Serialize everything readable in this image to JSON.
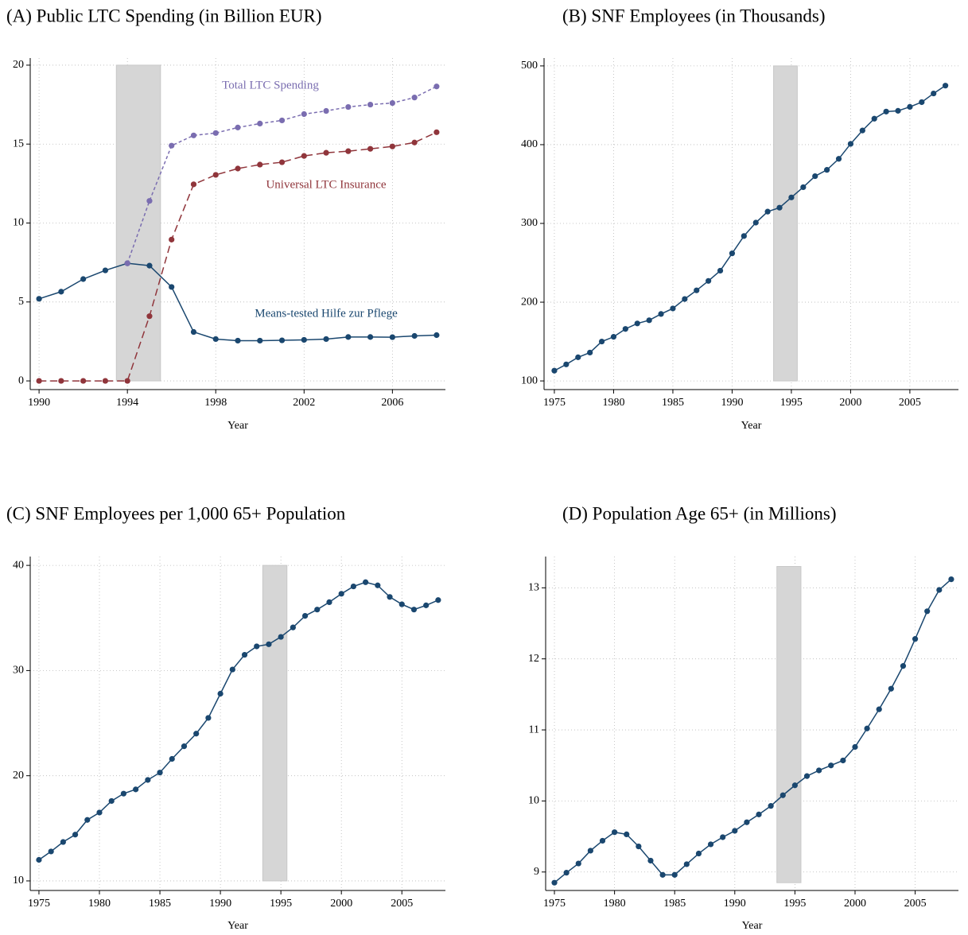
{
  "chart_data": [
    {
      "type": "line",
      "title": "(A) Public LTC Spending (in Billion EUR)",
      "x_label": "Year",
      "x": [
        1990,
        1991,
        1992,
        1993,
        1994,
        1995,
        1996,
        1997,
        1998,
        1999,
        2000,
        2001,
        2002,
        2003,
        2004,
        2005,
        2006,
        2007,
        2008
      ],
      "xlim": [
        1989.6,
        2008.4
      ],
      "xticks": [
        1990,
        1994,
        1998,
        2002,
        2006
      ],
      "ylim": [
        -0.55,
        20.45
      ],
      "yticks": [
        0,
        5,
        10,
        15,
        20
      ],
      "grid": true,
      "band": {
        "x": [
          1993.5,
          1995.5
        ],
        "y": [
          0,
          20
        ],
        "color": "#d6d6d6"
      },
      "series": [
        {
          "name": "Means-tested Hilfe zur Pflege",
          "color": "#1a476f",
          "line_style": "solid",
          "values": [
            5.2,
            5.65,
            6.45,
            7.0,
            7.45,
            7.3,
            5.95,
            3.1,
            2.65,
            2.55,
            2.55,
            2.57,
            2.6,
            2.65,
            2.78,
            2.78,
            2.77,
            2.85,
            2.9
          ]
        },
        {
          "name": "Universal LTC Insurance",
          "color": "#90353b",
          "line_style": "dashed",
          "values": [
            0,
            0,
            0,
            0,
            0,
            4.1,
            8.95,
            12.45,
            13.05,
            13.45,
            13.7,
            13.85,
            14.25,
            14.45,
            14.55,
            14.7,
            14.85,
            15.1,
            15.75
          ]
        },
        {
          "name": "Total LTC Spending",
          "color": "#7a6db0",
          "line_style": "dotted",
          "values": [
            null,
            null,
            null,
            null,
            7.45,
            11.4,
            14.9,
            15.55,
            15.7,
            16.05,
            16.3,
            16.5,
            16.9,
            17.1,
            17.35,
            17.5,
            17.6,
            17.95,
            18.65
          ]
        }
      ]
    },
    {
      "type": "line",
      "title": "(B)  SNF Employees (in Thousands)",
      "x_label": "Year",
      "x": [
        1975,
        1976,
        1977,
        1978,
        1979,
        1980,
        1981,
        1982,
        1983,
        1984,
        1985,
        1986,
        1987,
        1988,
        1989,
        1990,
        1991,
        1992,
        1993,
        1994,
        1995,
        1996,
        1997,
        1998,
        1999,
        2000,
        2001,
        2002,
        2003,
        2004,
        2005,
        2006,
        2007,
        2008
      ],
      "xlim": [
        1974.13,
        2009.1
      ],
      "xticks": [
        1975,
        1980,
        1985,
        1990,
        1995,
        2000,
        2005
      ],
      "ylim": [
        89,
        510
      ],
      "yticks": [
        100,
        200,
        300,
        400,
        500
      ],
      "grid": true,
      "band": {
        "x": [
          1993.5,
          1995.5
        ],
        "y": [
          100,
          500
        ],
        "color": "#d6d6d6"
      },
      "series": [
        {
          "color": "#1a476f",
          "line_style": "solid",
          "values": [
            113,
            121,
            130,
            136,
            150,
            156,
            166,
            173,
            177,
            185,
            192,
            204,
            215,
            227,
            240,
            262,
            284,
            301,
            315,
            320,
            333,
            346,
            360,
            368,
            382,
            401,
            418,
            433,
            442,
            443,
            448,
            454,
            465,
            475
          ]
        }
      ]
    },
    {
      "type": "line",
      "title": "(C)  SNF Employees per 1,000 65+ Population",
      "x_label": "Year",
      "x": [
        1975,
        1976,
        1977,
        1978,
        1979,
        1980,
        1981,
        1982,
        1983,
        1984,
        1985,
        1986,
        1987,
        1988,
        1989,
        1990,
        1991,
        1992,
        1993,
        1994,
        1995,
        1996,
        1997,
        1998,
        1999,
        2000,
        2001,
        2002,
        2003,
        2004,
        2005,
        2006,
        2007,
        2008
      ],
      "xlim": [
        1974.28,
        2008.6
      ],
      "xticks": [
        1975,
        1980,
        1985,
        1990,
        1995,
        2000,
        2005
      ],
      "ylim": [
        9.09,
        40.84
      ],
      "yticks": [
        10,
        20,
        30,
        40
      ],
      "grid": true,
      "band": {
        "x": [
          1993.5,
          1995.5
        ],
        "y": [
          10,
          40
        ],
        "color": "#d6d6d6"
      },
      "series": [
        {
          "color": "#1a476f",
          "line_style": "solid",
          "values": [
            12.0,
            12.8,
            13.7,
            14.4,
            15.8,
            16.5,
            17.6,
            18.3,
            18.7,
            19.6,
            20.3,
            21.6,
            22.8,
            24.0,
            25.5,
            27.8,
            30.1,
            31.5,
            32.3,
            32.5,
            33.2,
            34.1,
            35.2,
            35.8,
            36.5,
            37.3,
            38.0,
            38.4,
            38.1,
            37.0,
            36.3,
            35.8,
            36.2,
            36.7
          ]
        }
      ]
    },
    {
      "type": "line",
      "title": "(D)  Population Age 65+ (in Millions)",
      "x_label": "Year",
      "x": [
        1975,
        1976,
        1977,
        1978,
        1979,
        1980,
        1981,
        1982,
        1983,
        1984,
        1985,
        1986,
        1987,
        1988,
        1989,
        1990,
        1991,
        1992,
        1993,
        1994,
        1995,
        1996,
        1997,
        1998,
        1999,
        2000,
        2001,
        2002,
        2003,
        2004,
        2005,
        2006,
        2007,
        2008
      ],
      "xlim": [
        1974.27,
        2008.6
      ],
      "xticks": [
        1975,
        1980,
        1985,
        1990,
        1995,
        2000,
        2005
      ],
      "ylim": [
        8.74,
        13.44
      ],
      "yticks": [
        9,
        10,
        11,
        12,
        13
      ],
      "grid": true,
      "band": {
        "x": [
          1993.5,
          1995.5
        ],
        "y": [
          8.85,
          13.3
        ],
        "color": "#d6d6d6"
      },
      "series": [
        {
          "color": "#1a476f",
          "line_style": "solid",
          "values": [
            8.85,
            8.99,
            9.12,
            9.3,
            9.44,
            9.56,
            9.53,
            9.36,
            9.16,
            8.96,
            8.96,
            9.11,
            9.26,
            9.39,
            9.49,
            9.58,
            9.7,
            9.81,
            9.93,
            10.08,
            10.22,
            10.35,
            10.43,
            10.5,
            10.57,
            10.76,
            11.02,
            11.29,
            11.58,
            11.9,
            12.28,
            12.67,
            12.97,
            13.12
          ]
        }
      ]
    }
  ]
}
